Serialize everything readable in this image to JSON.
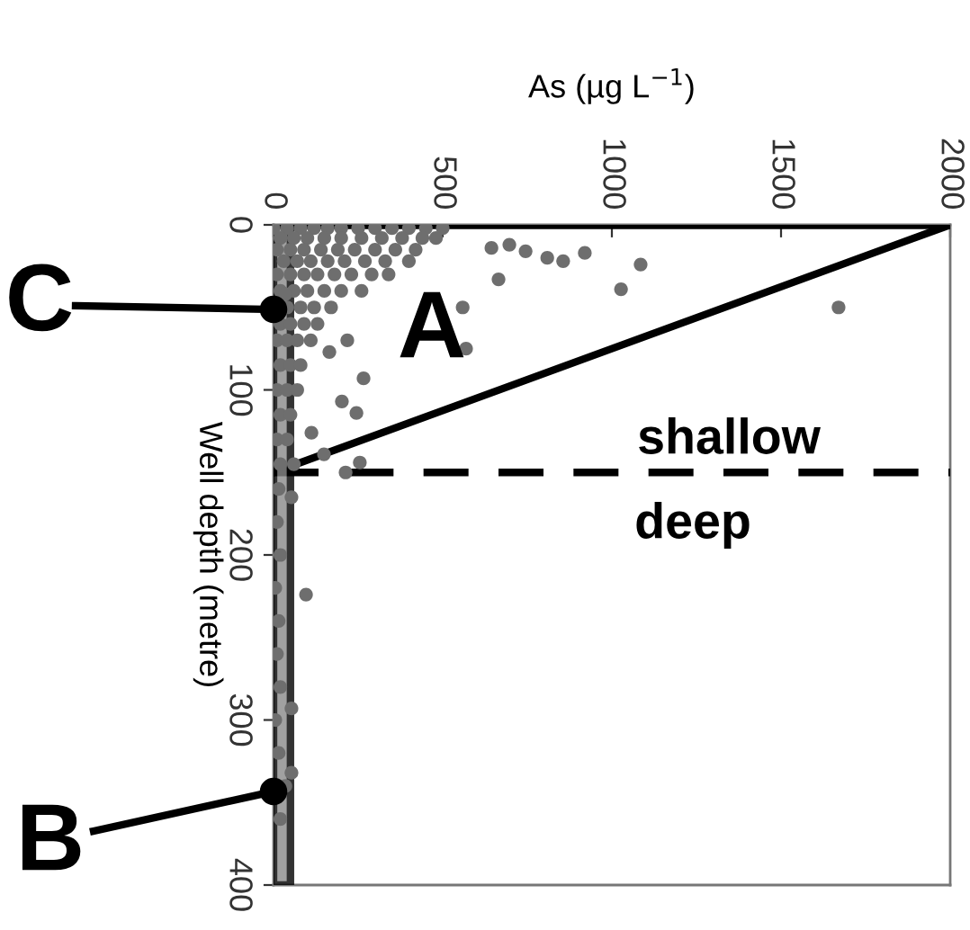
{
  "chart_data": {
    "type": "scatter",
    "xlabel": "As (µg L$^{−1}$)",
    "ylabel": "Well depth (metre)",
    "xlim": [
      0,
      2000
    ],
    "xticks": [
      0,
      500,
      1000,
      1500,
      2000
    ],
    "ylim": [
      400,
      0
    ],
    "yticks": [
      0,
      100,
      200,
      300,
      400
    ],
    "grid": false,
    "series": [
      {
        "color": "#6e6e6e",
        "marker": "circle",
        "x": [
          0,
          40,
          80,
          120,
          160,
          200,
          250,
          300,
          350,
          400,
          450,
          500,
          20,
          60,
          100,
          150,
          200,
          260,
          320,
          380,
          440,
          480,
          10,
          50,
          90,
          140,
          190,
          240,
          300,
          360,
          420,
          30,
          70,
          110,
          160,
          210,
          270,
          330,
          400,
          10,
          50,
          90,
          130,
          180,
          230,
          290,
          340,
          20,
          60,
          100,
          150,
          200,
          260,
          35,
          40,
          80,
          120,
          170,
          20,
          50,
          90,
          130,
          10,
          40,
          70,
          110,
          20,
          50,
          80,
          10,
          40,
          70,
          20,
          50,
          10,
          40,
          20,
          60,
          15,
          10,
          20,
          5,
          15,
          10,
          20,
          5,
          15,
          35,
          20,
          96,
          53,
          53,
          53,
          809,
          856,
          920,
          1085,
          1027,
          1670,
          569,
          697,
          745,
          644,
          665,
          559,
          255,
          213,
          149,
          112,
          245,
          202,
          266,
          218,
          165
        ],
        "values": [
          2,
          2,
          2,
          2,
          2,
          2,
          2,
          2,
          2,
          2,
          2,
          2,
          8,
          8,
          8,
          8,
          8,
          8,
          8,
          8,
          8,
          8,
          15,
          15,
          15,
          15,
          15,
          15,
          15,
          15,
          15,
          22,
          22,
          22,
          22,
          22,
          22,
          22,
          22,
          30,
          30,
          30,
          30,
          30,
          30,
          30,
          30,
          40,
          40,
          40,
          40,
          40,
          40,
          42,
          50,
          50,
          50,
          50,
          60,
          60,
          60,
          60,
          70,
          70,
          70,
          70,
          85,
          85,
          85,
          100,
          100,
          100,
          115,
          115,
          130,
          130,
          145,
          145,
          160,
          180,
          200,
          220,
          240,
          260,
          280,
          300,
          320,
          340,
          360,
          224,
          332,
          293,
          165,
          20,
          22,
          17,
          24,
          39,
          50,
          75,
          12,
          16,
          14,
          33,
          50,
          144,
          150,
          139,
          126,
          114,
          107,
          93,
          70,
          77
        ]
      },
      {
        "type": "line",
        "color": "#000000",
        "marker": "none",
        "x": [
          0,
          2000
        ],
        "values": [
          150,
          0
        ]
      }
    ],
    "bands": [
      {
        "axis": "x",
        "from": 0,
        "to": 50,
        "color": "#8a8a8a"
      }
    ],
    "ref_lines": [
      {
        "axis": "y",
        "value": 0,
        "color": "#000000",
        "line_style": "solid"
      },
      {
        "axis": "y",
        "value": 150,
        "color": "#000000",
        "line_style": "dashed"
      }
    ],
    "annotations": [
      "A",
      "B",
      "C",
      "shallow",
      "deep"
    ]
  }
}
